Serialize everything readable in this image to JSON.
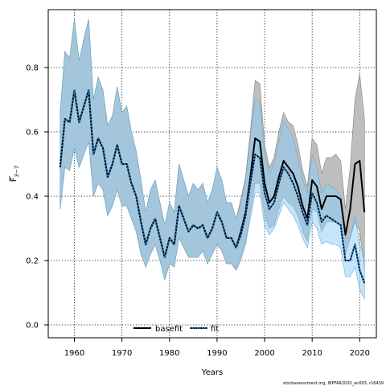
{
  "chart_data": {
    "type": "line",
    "ylabel_main": "F",
    "ylabel_sub": "3−7",
    "xlabel": "Years",
    "caption": "stockassessment.org, IBPFAR2020_an003, r16439",
    "xlim": [
      1954.5,
      2023.5
    ],
    "ylim": [
      -0.04,
      0.98
    ],
    "x_ticks": [
      1960,
      1970,
      1980,
      1990,
      2000,
      2010,
      2020
    ],
    "y_ticks": [
      0.0,
      0.2,
      0.4,
      0.6,
      0.8
    ],
    "y_tick_labels": [
      "0.0",
      "0.2",
      "0.4",
      "0.6",
      "0.8"
    ],
    "grid": true,
    "legend_position": "bottom-center",
    "colors": {
      "basefit_band": "#bebebe",
      "fit_band": "#87cefa",
      "basefit_line": "#000000",
      "fit_line": "#000000",
      "fit_line_dots": "#1f77c4",
      "band_outline": "#7f7f7f"
    },
    "x": [
      1957,
      1958,
      1959,
      1960,
      1961,
      1962,
      1963,
      1964,
      1965,
      1966,
      1967,
      1968,
      1969,
      1970,
      1971,
      1972,
      1973,
      1974,
      1975,
      1976,
      1977,
      1978,
      1979,
      1980,
      1981,
      1982,
      1983,
      1984,
      1985,
      1986,
      1987,
      1988,
      1989,
      1990,
      1991,
      1992,
      1993,
      1994,
      1995,
      1996,
      1997,
      1998,
      1999,
      2000,
      2001,
      2002,
      2003,
      2004,
      2005,
      2006,
      2007,
      2008,
      2009,
      2010,
      2011,
      2012,
      2013,
      2014,
      2015,
      2016,
      2017,
      2018,
      2019,
      2020,
      2021
    ],
    "series": [
      {
        "name": "basefit",
        "values": [
          0.49,
          0.64,
          0.63,
          0.73,
          0.63,
          0.68,
          0.73,
          0.53,
          0.58,
          0.55,
          0.46,
          0.5,
          0.56,
          0.5,
          0.5,
          0.44,
          0.4,
          0.32,
          0.25,
          0.3,
          0.33,
          0.27,
          0.21,
          0.27,
          0.25,
          0.37,
          0.33,
          0.29,
          0.31,
          0.3,
          0.31,
          0.27,
          0.3,
          0.35,
          0.32,
          0.27,
          0.27,
          0.24,
          0.29,
          0.35,
          0.46,
          0.58,
          0.57,
          0.44,
          0.38,
          0.4,
          0.46,
          0.51,
          0.49,
          0.47,
          0.43,
          0.37,
          0.33,
          0.45,
          0.43,
          0.36,
          0.4,
          0.4,
          0.4,
          0.39,
          0.28,
          0.36,
          0.5,
          0.51,
          0.35
        ],
        "lower": [
          0.36,
          0.49,
          0.48,
          0.55,
          0.49,
          0.53,
          0.57,
          0.4,
          0.44,
          0.42,
          0.34,
          0.37,
          0.42,
          0.37,
          0.37,
          0.33,
          0.29,
          0.22,
          0.18,
          0.22,
          0.25,
          0.2,
          0.14,
          0.19,
          0.18,
          0.27,
          0.24,
          0.21,
          0.21,
          0.21,
          0.23,
          0.19,
          0.22,
          0.25,
          0.23,
          0.19,
          0.19,
          0.17,
          0.21,
          0.26,
          0.35,
          0.44,
          0.44,
          0.34,
          0.3,
          0.31,
          0.36,
          0.4,
          0.38,
          0.37,
          0.34,
          0.29,
          0.26,
          0.36,
          0.35,
          0.29,
          0.32,
          0.32,
          0.32,
          0.31,
          0.22,
          0.27,
          0.32,
          0.29,
          0.17
        ],
        "upper": [
          0.66,
          0.85,
          0.83,
          0.95,
          0.82,
          0.89,
          0.95,
          0.7,
          0.77,
          0.73,
          0.62,
          0.65,
          0.74,
          0.66,
          0.68,
          0.6,
          0.54,
          0.45,
          0.35,
          0.42,
          0.45,
          0.38,
          0.31,
          0.38,
          0.35,
          0.5,
          0.45,
          0.4,
          0.44,
          0.42,
          0.44,
          0.38,
          0.42,
          0.49,
          0.45,
          0.38,
          0.38,
          0.33,
          0.39,
          0.46,
          0.6,
          0.76,
          0.75,
          0.56,
          0.49,
          0.52,
          0.6,
          0.66,
          0.63,
          0.62,
          0.56,
          0.48,
          0.43,
          0.58,
          0.56,
          0.47,
          0.52,
          0.52,
          0.53,
          0.51,
          0.36,
          0.49,
          0.7,
          0.78,
          0.64
        ]
      },
      {
        "name": "fit",
        "values": [
          0.49,
          0.64,
          0.63,
          0.73,
          0.63,
          0.68,
          0.73,
          0.53,
          0.58,
          0.55,
          0.46,
          0.5,
          0.56,
          0.5,
          0.5,
          0.44,
          0.4,
          0.32,
          0.25,
          0.3,
          0.33,
          0.27,
          0.21,
          0.27,
          0.25,
          0.37,
          0.33,
          0.29,
          0.31,
          0.3,
          0.31,
          0.27,
          0.3,
          0.35,
          0.32,
          0.27,
          0.27,
          0.24,
          0.28,
          0.34,
          0.44,
          0.53,
          0.52,
          0.41,
          0.36,
          0.38,
          0.44,
          0.49,
          0.47,
          0.44,
          0.4,
          0.35,
          0.31,
          0.41,
          0.38,
          0.32,
          0.34,
          0.33,
          0.32,
          0.31,
          0.2,
          0.2,
          0.25,
          0.17,
          0.13
        ],
        "lower": [
          0.36,
          0.49,
          0.48,
          0.55,
          0.49,
          0.53,
          0.57,
          0.4,
          0.44,
          0.42,
          0.34,
          0.37,
          0.42,
          0.37,
          0.37,
          0.33,
          0.29,
          0.22,
          0.18,
          0.22,
          0.25,
          0.2,
          0.14,
          0.19,
          0.18,
          0.27,
          0.24,
          0.21,
          0.21,
          0.21,
          0.23,
          0.19,
          0.22,
          0.25,
          0.23,
          0.19,
          0.19,
          0.17,
          0.2,
          0.25,
          0.33,
          0.41,
          0.41,
          0.31,
          0.28,
          0.3,
          0.34,
          0.38,
          0.36,
          0.34,
          0.31,
          0.27,
          0.24,
          0.32,
          0.3,
          0.25,
          0.26,
          0.25,
          0.25,
          0.24,
          0.15,
          0.15,
          0.18,
          0.11,
          0.08
        ],
        "upper": [
          0.66,
          0.85,
          0.83,
          0.95,
          0.82,
          0.89,
          0.95,
          0.7,
          0.77,
          0.73,
          0.62,
          0.65,
          0.74,
          0.66,
          0.68,
          0.6,
          0.54,
          0.45,
          0.35,
          0.42,
          0.45,
          0.38,
          0.31,
          0.38,
          0.35,
          0.5,
          0.45,
          0.4,
          0.44,
          0.42,
          0.44,
          0.38,
          0.42,
          0.49,
          0.45,
          0.38,
          0.38,
          0.33,
          0.38,
          0.45,
          0.58,
          0.7,
          0.69,
          0.53,
          0.47,
          0.5,
          0.57,
          0.63,
          0.61,
          0.58,
          0.52,
          0.45,
          0.41,
          0.53,
          0.49,
          0.41,
          0.44,
          0.43,
          0.42,
          0.4,
          0.27,
          0.27,
          0.34,
          0.25,
          0.21
        ]
      }
    ]
  }
}
